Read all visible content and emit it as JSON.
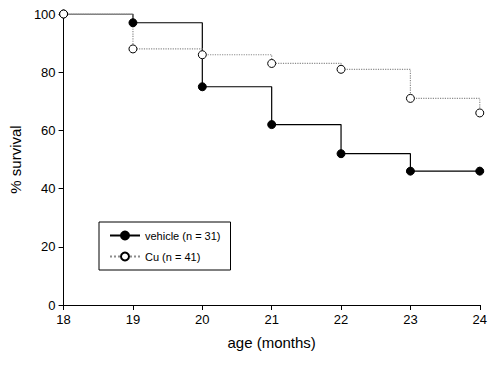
{
  "chart_data": {
    "type": "line",
    "x_label": "age (months)",
    "y_label": "% survival",
    "x": [
      18,
      19,
      20,
      21,
      22,
      23,
      24
    ],
    "series": [
      {
        "name": "vehicle (n = 31)",
        "color": "#000000",
        "marker": "filled",
        "line_style": "solid",
        "values": [
          100,
          97,
          75,
          62,
          52,
          46,
          46
        ]
      },
      {
        "name": "Cu (n = 41)",
        "color": "#8c8c8c",
        "marker": "open",
        "line_style": "dotted",
        "values": [
          100,
          88,
          86,
          83,
          81,
          71,
          66
        ]
      }
    ],
    "xlim": [
      18,
      24
    ],
    "xticks": [
      18,
      19,
      20,
      21,
      22,
      23,
      24
    ],
    "ylim": [
      0,
      100
    ],
    "yticks": [
      0,
      20,
      40,
      60,
      80,
      100
    ],
    "grid": false,
    "legend": "lower left"
  }
}
